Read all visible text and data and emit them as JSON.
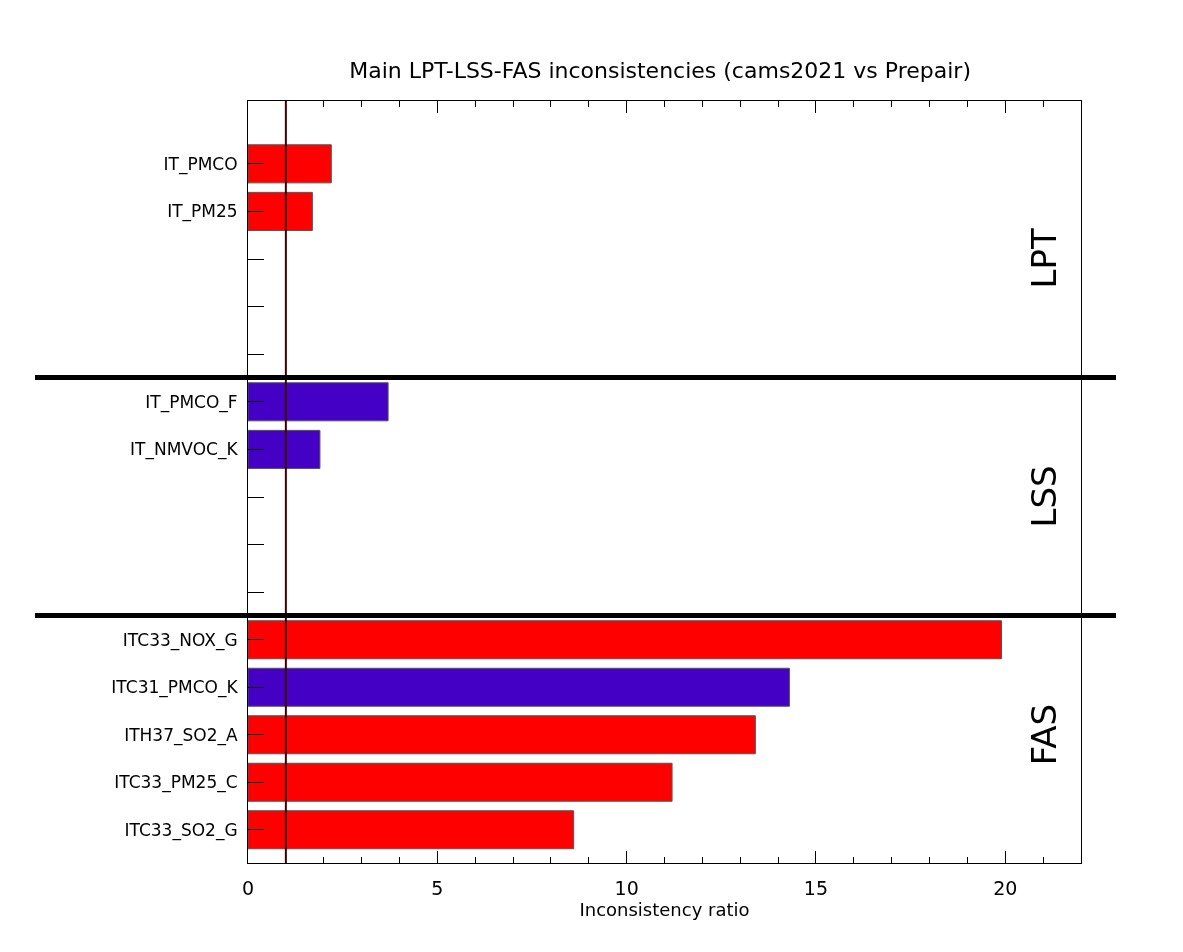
{
  "chart_data": [
    {
      "type": "bar",
      "orientation": "horizontal",
      "title": "Main LPT-LSS-FAS inconsistencies (cams2021 vs Prepair)",
      "categories": [
        "IT_PMCO",
        "IT_PM25",
        null,
        null,
        null
      ],
      "values": [
        2.2,
        1.7,
        null,
        null,
        null
      ],
      "colors": [
        "#ff0000",
        "#ff0000",
        "#ff0000",
        "#ff0000",
        "#ff0000"
      ],
      "xlim": [
        0,
        22
      ],
      "xticks": [
        0,
        {
          "value": 1,
          "label": null
        },
        {
          "value": 2,
          "label": null
        },
        {
          "value": 3,
          "label": null
        },
        {
          "value": 4,
          "label": null
        },
        5,
        {
          "value": 6,
          "label": null
        },
        {
          "value": 7,
          "label": null
        },
        {
          "value": 8,
          "label": null
        },
        {
          "value": 9,
          "label": null
        },
        10,
        {
          "value": 11,
          "label": null
        },
        {
          "value": 12,
          "label": null
        },
        {
          "value": 13,
          "label": null
        },
        {
          "value": 14,
          "label": null
        },
        15,
        {
          "value": 16,
          "label": null
        },
        {
          "value": 17,
          "label": null
        },
        {
          "value": 18,
          "label": null
        },
        {
          "value": 19,
          "label": null
        },
        20,
        {
          "value": 21,
          "label": null
        }
      ],
      "tick_labels": "y",
      "ref_lines": [
        {
          "axis": "x",
          "value": 1,
          "color": "#400000"
        }
      ],
      "annotations": [
        "LPT"
      ]
    },
    {
      "type": "bar",
      "orientation": "horizontal",
      "categories": [
        "IT_PMCO_F",
        "IT_NMVOC_K",
        null,
        null,
        null
      ],
      "values": [
        3.7,
        1.9,
        null,
        null,
        null
      ],
      "colors": [
        "#4400c4",
        "#4400c4",
        "#4400c4",
        "#4400c4",
        "#4400c4"
      ],
      "xlim": [
        0,
        22
      ],
      "tick_labels": "y",
      "ref_lines": [
        {
          "axis": "x",
          "value": 1,
          "color": "#400000"
        }
      ],
      "annotations": [
        "LSS"
      ]
    },
    {
      "type": "bar",
      "orientation": "horizontal",
      "xlabel": "Inconsistency ratio",
      "categories": [
        "ITC33_NOX_G",
        "ITC31_PMCO_K",
        "ITH37_SO2_A",
        "ITC33_PM25_C",
        "ITC33_SO2_G"
      ],
      "values": [
        19.9,
        14.3,
        13.4,
        11.2,
        8.6
      ],
      "colors": [
        "#ff0000",
        "#4400c4",
        "#ff0000",
        "#ff0000",
        "#ff0000"
      ],
      "xlim": [
        0,
        22
      ],
      "xticks": [
        0,
        {
          "value": 1,
          "label": null
        },
        {
          "value": 2,
          "label": null
        },
        {
          "value": 3,
          "label": null
        },
        {
          "value": 4,
          "label": null
        },
        5,
        {
          "value": 6,
          "label": null
        },
        {
          "value": 7,
          "label": null
        },
        {
          "value": 8,
          "label": null
        },
        {
          "value": 9,
          "label": null
        },
        10,
        {
          "value": 11,
          "label": null
        },
        {
          "value": 12,
          "label": null
        },
        {
          "value": 13,
          "label": null
        },
        {
          "value": 14,
          "label": null
        },
        15,
        {
          "value": 16,
          "label": null
        },
        {
          "value": 17,
          "label": null
        },
        {
          "value": 18,
          "label": null
        },
        {
          "value": 19,
          "label": null
        },
        20,
        {
          "value": 21,
          "label": null
        }
      ],
      "ref_lines": [
        {
          "axis": "x",
          "value": 1,
          "color": "#400000"
        }
      ],
      "annotations": [
        "FAS"
      ]
    }
  ]
}
